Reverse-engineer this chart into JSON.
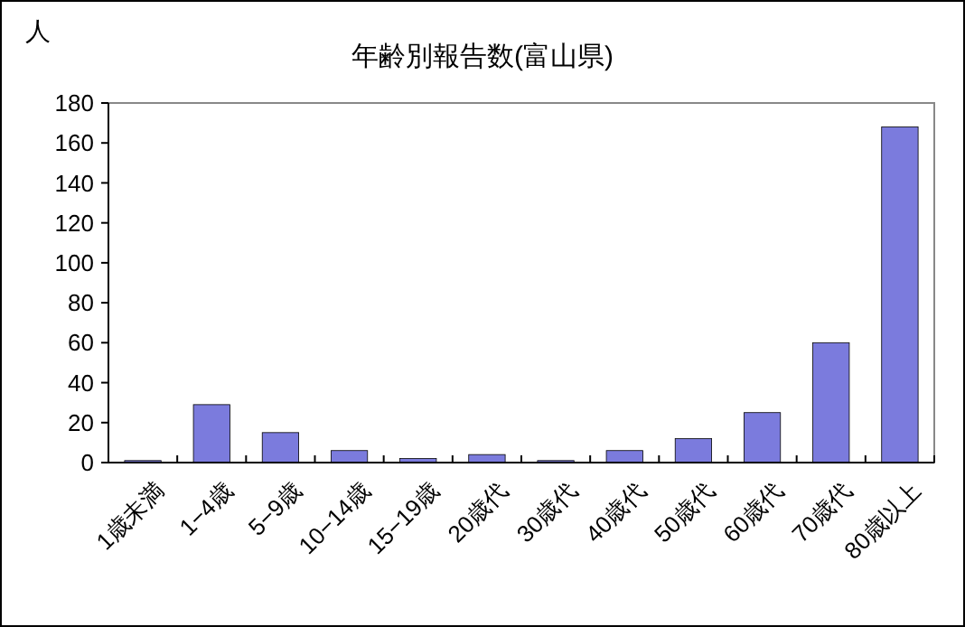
{
  "chart_data": {
    "type": "bar",
    "title": "年齢別報告数(富山県)",
    "ylabel": "人",
    "categories": [
      "1歳未満",
      "1−4歳",
      "5−9歳",
      "10−14歳",
      "15−19歳",
      "20歳代",
      "30歳代",
      "40歳代",
      "50歳代",
      "60歳代",
      "70歳代",
      "80歳以上"
    ],
    "values": [
      1,
      29,
      15,
      6,
      2,
      4,
      1,
      6,
      12,
      25,
      60,
      168
    ],
    "color": "#7b7bdd",
    "ylim": [
      0,
      180
    ],
    "yticks": [
      0,
      20,
      40,
      60,
      80,
      100,
      120,
      140,
      160,
      180
    ],
    "grid": false
  }
}
